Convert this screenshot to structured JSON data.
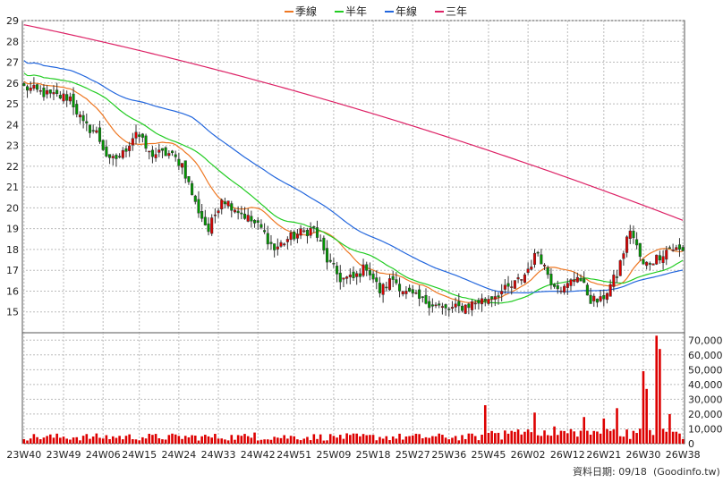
{
  "chart_data": {
    "type": "candlestick",
    "legend": {
      "placement": "top-center",
      "items": [
        {
          "label": "季線",
          "color": "#ee7722"
        },
        {
          "label": "半年",
          "color": "#22cc22"
        },
        {
          "label": "年線",
          "color": "#2266dd"
        },
        {
          "label": "三年",
          "color": "#dd2266"
        }
      ]
    },
    "x_tick_labels": [
      "23W40",
      "23W49",
      "24W06",
      "24W15",
      "24W24",
      "24W33",
      "24W42",
      "24W51",
      "25W09",
      "25W18",
      "25W27",
      "25W36",
      "25W45",
      "26W02",
      "26W12",
      "26W21",
      "26W30",
      "26W38"
    ],
    "price_axis": {
      "min": 14,
      "max": 29,
      "ticks": [
        15,
        16,
        17,
        18,
        19,
        20,
        21,
        22,
        23,
        24,
        25,
        26,
        27,
        28,
        29
      ]
    },
    "volume_axis": {
      "min": 0,
      "max": 75000,
      "ticks": [
        0,
        10000,
        20000,
        30000,
        40000,
        50000,
        60000,
        70000
      ],
      "tick_labels": [
        "0",
        "10,000",
        "20,000",
        "30,000",
        "40,000",
        "50,000",
        "60,000",
        "70,000"
      ]
    },
    "grid": true,
    "colors": {
      "up": "#dd0000",
      "down": "#009900",
      "volume": "#dd0000",
      "grid": "#bbbbbb",
      "axis": "#555555"
    },
    "close_anchors": [
      [
        0,
        25.8
      ],
      [
        8,
        25.4
      ],
      [
        14,
        25.3
      ],
      [
        18,
        24.0
      ],
      [
        22,
        23.6
      ],
      [
        26,
        22.2
      ],
      [
        30,
        22.6
      ],
      [
        34,
        23.7
      ],
      [
        38,
        22.6
      ],
      [
        44,
        22.6
      ],
      [
        48,
        22.1
      ],
      [
        52,
        20.2
      ],
      [
        56,
        18.9
      ],
      [
        60,
        20.5
      ],
      [
        64,
        20.0
      ],
      [
        68,
        19.5
      ],
      [
        72,
        19.0
      ],
      [
        76,
        18.0
      ],
      [
        80,
        18.5
      ],
      [
        84,
        18.8
      ],
      [
        88,
        19.0
      ],
      [
        92,
        17.5
      ],
      [
        96,
        16.6
      ],
      [
        100,
        16.6
      ],
      [
        104,
        17.2
      ],
      [
        108,
        16.0
      ],
      [
        112,
        16.6
      ],
      [
        116,
        15.9
      ],
      [
        120,
        15.6
      ],
      [
        124,
        15.4
      ],
      [
        128,
        15.1
      ],
      [
        132,
        15.2
      ],
      [
        136,
        15.4
      ],
      [
        140,
        15.6
      ],
      [
        144,
        15.9
      ],
      [
        148,
        16.2
      ],
      [
        152,
        16.8
      ],
      [
        156,
        17.9
      ],
      [
        160,
        16.5
      ],
      [
        164,
        16.1
      ],
      [
        168,
        16.8
      ],
      [
        172,
        15.6
      ],
      [
        175,
        15.5
      ],
      [
        180,
        16.8
      ],
      [
        184,
        19.0
      ],
      [
        188,
        17.2
      ],
      [
        192,
        17.6
      ],
      [
        196,
        18.1
      ],
      [
        200,
        17.9
      ]
    ],
    "sma_series": [
      {
        "label": "季線",
        "color": "#ee7722",
        "window": 13
      },
      {
        "label": "半年",
        "color": "#22cc22",
        "window": 26
      },
      {
        "label": "年線",
        "color": "#2266dd",
        "window": 52
      },
      {
        "label": "三年",
        "color": "#dd2266",
        "start": 28.8,
        "end": 19.4
      }
    ],
    "volume_spikes": [
      [
        0,
        3000
      ],
      [
        70,
        7500
      ],
      [
        96,
        6000
      ],
      [
        140,
        26000
      ],
      [
        155,
        21000
      ],
      [
        170,
        18000
      ],
      [
        176,
        17000
      ],
      [
        180,
        24000
      ],
      [
        188,
        49000
      ],
      [
        189,
        37000
      ],
      [
        192,
        73000
      ],
      [
        193,
        64000
      ],
      [
        196,
        20000
      ]
    ],
    "date_note": "資料日期: 09/18",
    "source_note": "(Goodinfo.tw)"
  }
}
